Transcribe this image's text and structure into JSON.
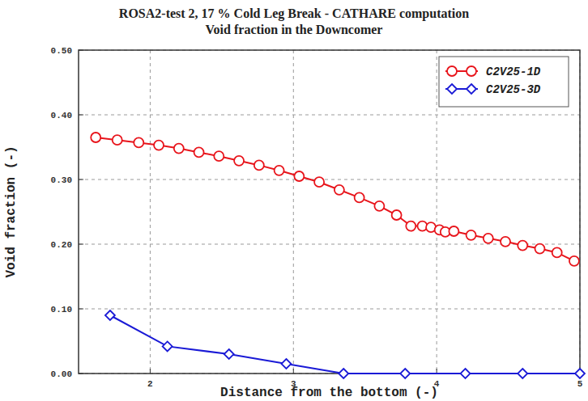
{
  "chart_data": {
    "type": "line",
    "title": "ROSA2-test 2, 17 % Cold Leg Break - CATHARE computation",
    "subtitle": "Void fraction in the Downcomer",
    "x_label": "Distance from the bottom (-)",
    "y_label": "Void fraction (-)",
    "xlim": [
      1.5,
      5
    ],
    "xticks": [
      2,
      3,
      4,
      5
    ],
    "ylim": [
      0,
      0.5
    ],
    "yticks": [
      {
        "value": 0,
        "label": "0.00"
      },
      {
        "value": 0.1,
        "label": "0.10"
      },
      {
        "value": 0.2,
        "label": "0.20"
      },
      {
        "value": 0.3,
        "label": "0.30"
      },
      {
        "value": 0.4,
        "label": "0.40"
      },
      {
        "value": 0.5,
        "label": "0.50"
      }
    ],
    "grid": true,
    "legend": "upper right",
    "series": [
      {
        "name": "C2V25-1D",
        "color": "#e8141b",
        "marker": "circle",
        "x": [
          1.62,
          1.77,
          1.92,
          2.06,
          2.2,
          2.34,
          2.48,
          2.62,
          2.76,
          2.9,
          3.04,
          3.18,
          3.32,
          3.46,
          3.6,
          3.72,
          3.82,
          3.9,
          3.96,
          4.02,
          4.06,
          4.12,
          4.24,
          4.36,
          4.48,
          4.6,
          4.72,
          4.84,
          4.96
        ],
        "values": [
          0.365,
          0.361,
          0.357,
          0.353,
          0.348,
          0.342,
          0.336,
          0.329,
          0.322,
          0.314,
          0.305,
          0.296,
          0.284,
          0.272,
          0.259,
          0.245,
          0.228,
          0.228,
          0.226,
          0.222,
          0.219,
          0.22,
          0.214,
          0.209,
          0.204,
          0.198,
          0.193,
          0.187,
          0.174
        ]
      },
      {
        "name": "C2V25-3D",
        "color": "#1a1ad6",
        "marker": "diamond",
        "x": [
          1.72,
          2.12,
          2.55,
          2.95,
          3.35,
          3.78,
          4.2,
          4.6,
          5.0
        ],
        "values": [
          0.09,
          0.042,
          0.03,
          0.015,
          0.0,
          0.0,
          0.0,
          0.0,
          0.0
        ]
      }
    ]
  }
}
